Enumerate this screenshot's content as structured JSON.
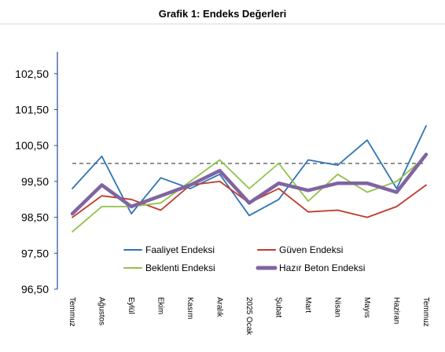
{
  "chart_data": {
    "type": "line",
    "title": "Grafik 1: Endeks Değerleri",
    "categories": [
      "Temmuz",
      "Ağustos",
      "Eylül",
      "Ekim",
      "Kasım",
      "Aralık",
      "2025 Ocak",
      "Şubat",
      "Mart",
      "Nisan",
      "Mayıs",
      "Haziran",
      "Temmuz"
    ],
    "ylim": [
      96.5,
      103.0
    ],
    "yticks": [
      "96,50",
      "97,50",
      "98,50",
      "99,50",
      "100,50",
      "101,50",
      "102,50"
    ],
    "reference_line": 100,
    "grid": false,
    "legend_position": "bottom-center",
    "series": [
      {
        "name": "Faaliyet Endeksi",
        "color": "#2e75b6",
        "values": [
          99.3,
          100.2,
          98.6,
          99.6,
          99.3,
          99.7,
          98.55,
          99.0,
          100.1,
          99.95,
          100.65,
          99.3,
          101.05
        ]
      },
      {
        "name": "Güven Endeksi",
        "color": "#c0392b",
        "values": [
          98.5,
          99.1,
          99.0,
          98.7,
          99.4,
          99.5,
          98.9,
          99.3,
          98.65,
          98.7,
          98.5,
          98.8,
          99.4
        ]
      },
      {
        "name": "Beklenti Endeksi",
        "color": "#92c14b",
        "values": [
          98.1,
          98.8,
          98.8,
          98.9,
          99.5,
          100.1,
          99.3,
          100.0,
          98.95,
          99.7,
          99.2,
          99.5,
          100.2
        ]
      },
      {
        "name": "Hazır Beton Endeksi",
        "color": "#8064a2",
        "values": [
          98.6,
          99.4,
          98.8,
          99.1,
          99.4,
          99.8,
          98.9,
          99.45,
          99.25,
          99.45,
          99.45,
          99.2,
          100.25
        ]
      }
    ]
  }
}
